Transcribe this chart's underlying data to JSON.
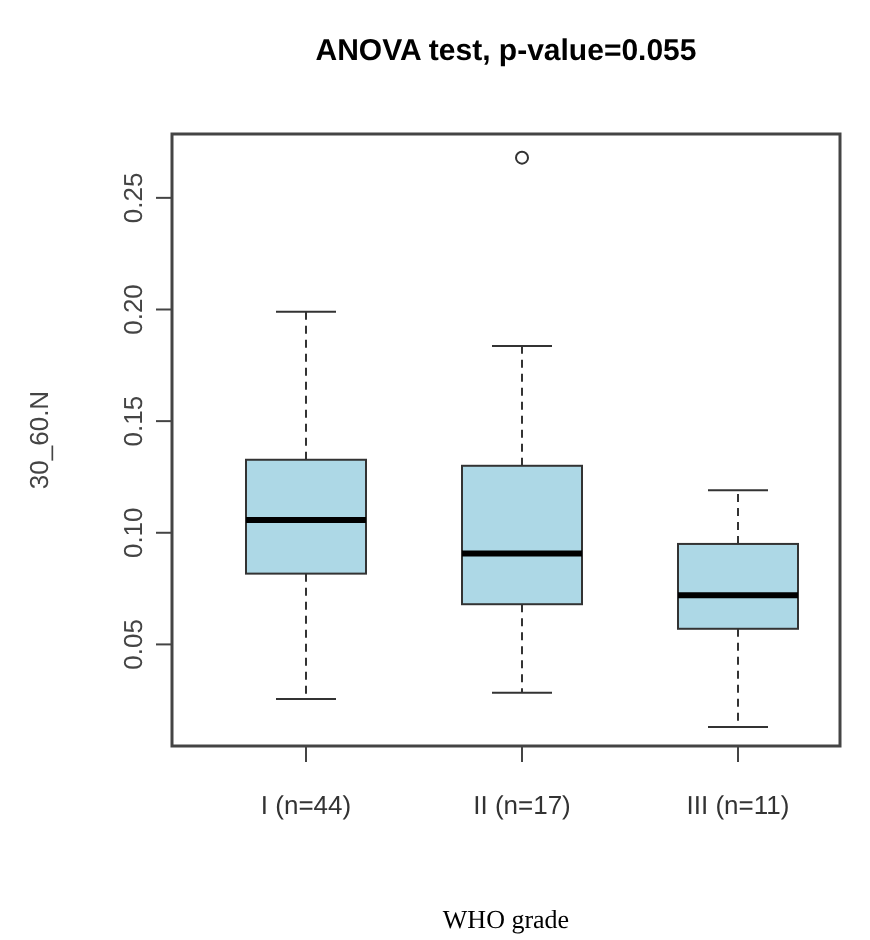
{
  "chart_data": {
    "type": "box",
    "title": "ANOVA test, p-value=0.055",
    "xlabel": "WHO grade",
    "ylabel": "30_60.N",
    "categories": [
      "I (n=44)",
      "II (n=17)",
      "III (n=11)"
    ],
    "color": "#add8e6",
    "boxes": [
      {
        "low": 0.0255,
        "q1": 0.0817,
        "median": 0.1057,
        "q3": 0.1327,
        "high": 0.199
      },
      {
        "low": 0.0284,
        "q1": 0.068,
        "median": 0.0907,
        "q3": 0.13,
        "high": 0.1836,
        "outliers": [
          0.268
        ]
      },
      {
        "low": 0.013,
        "q1": 0.057,
        "median": 0.072,
        "q3": 0.095,
        "high": 0.119
      }
    ],
    "ylim": [
      0.0045,
      0.2786
    ],
    "yticks": [
      0.05,
      {
        "value": 0.1,
        "label": "0.10"
      },
      0.15,
      {
        "value": 0.2,
        "label": "0.20"
      },
      0.25
    ],
    "grid": false
  }
}
